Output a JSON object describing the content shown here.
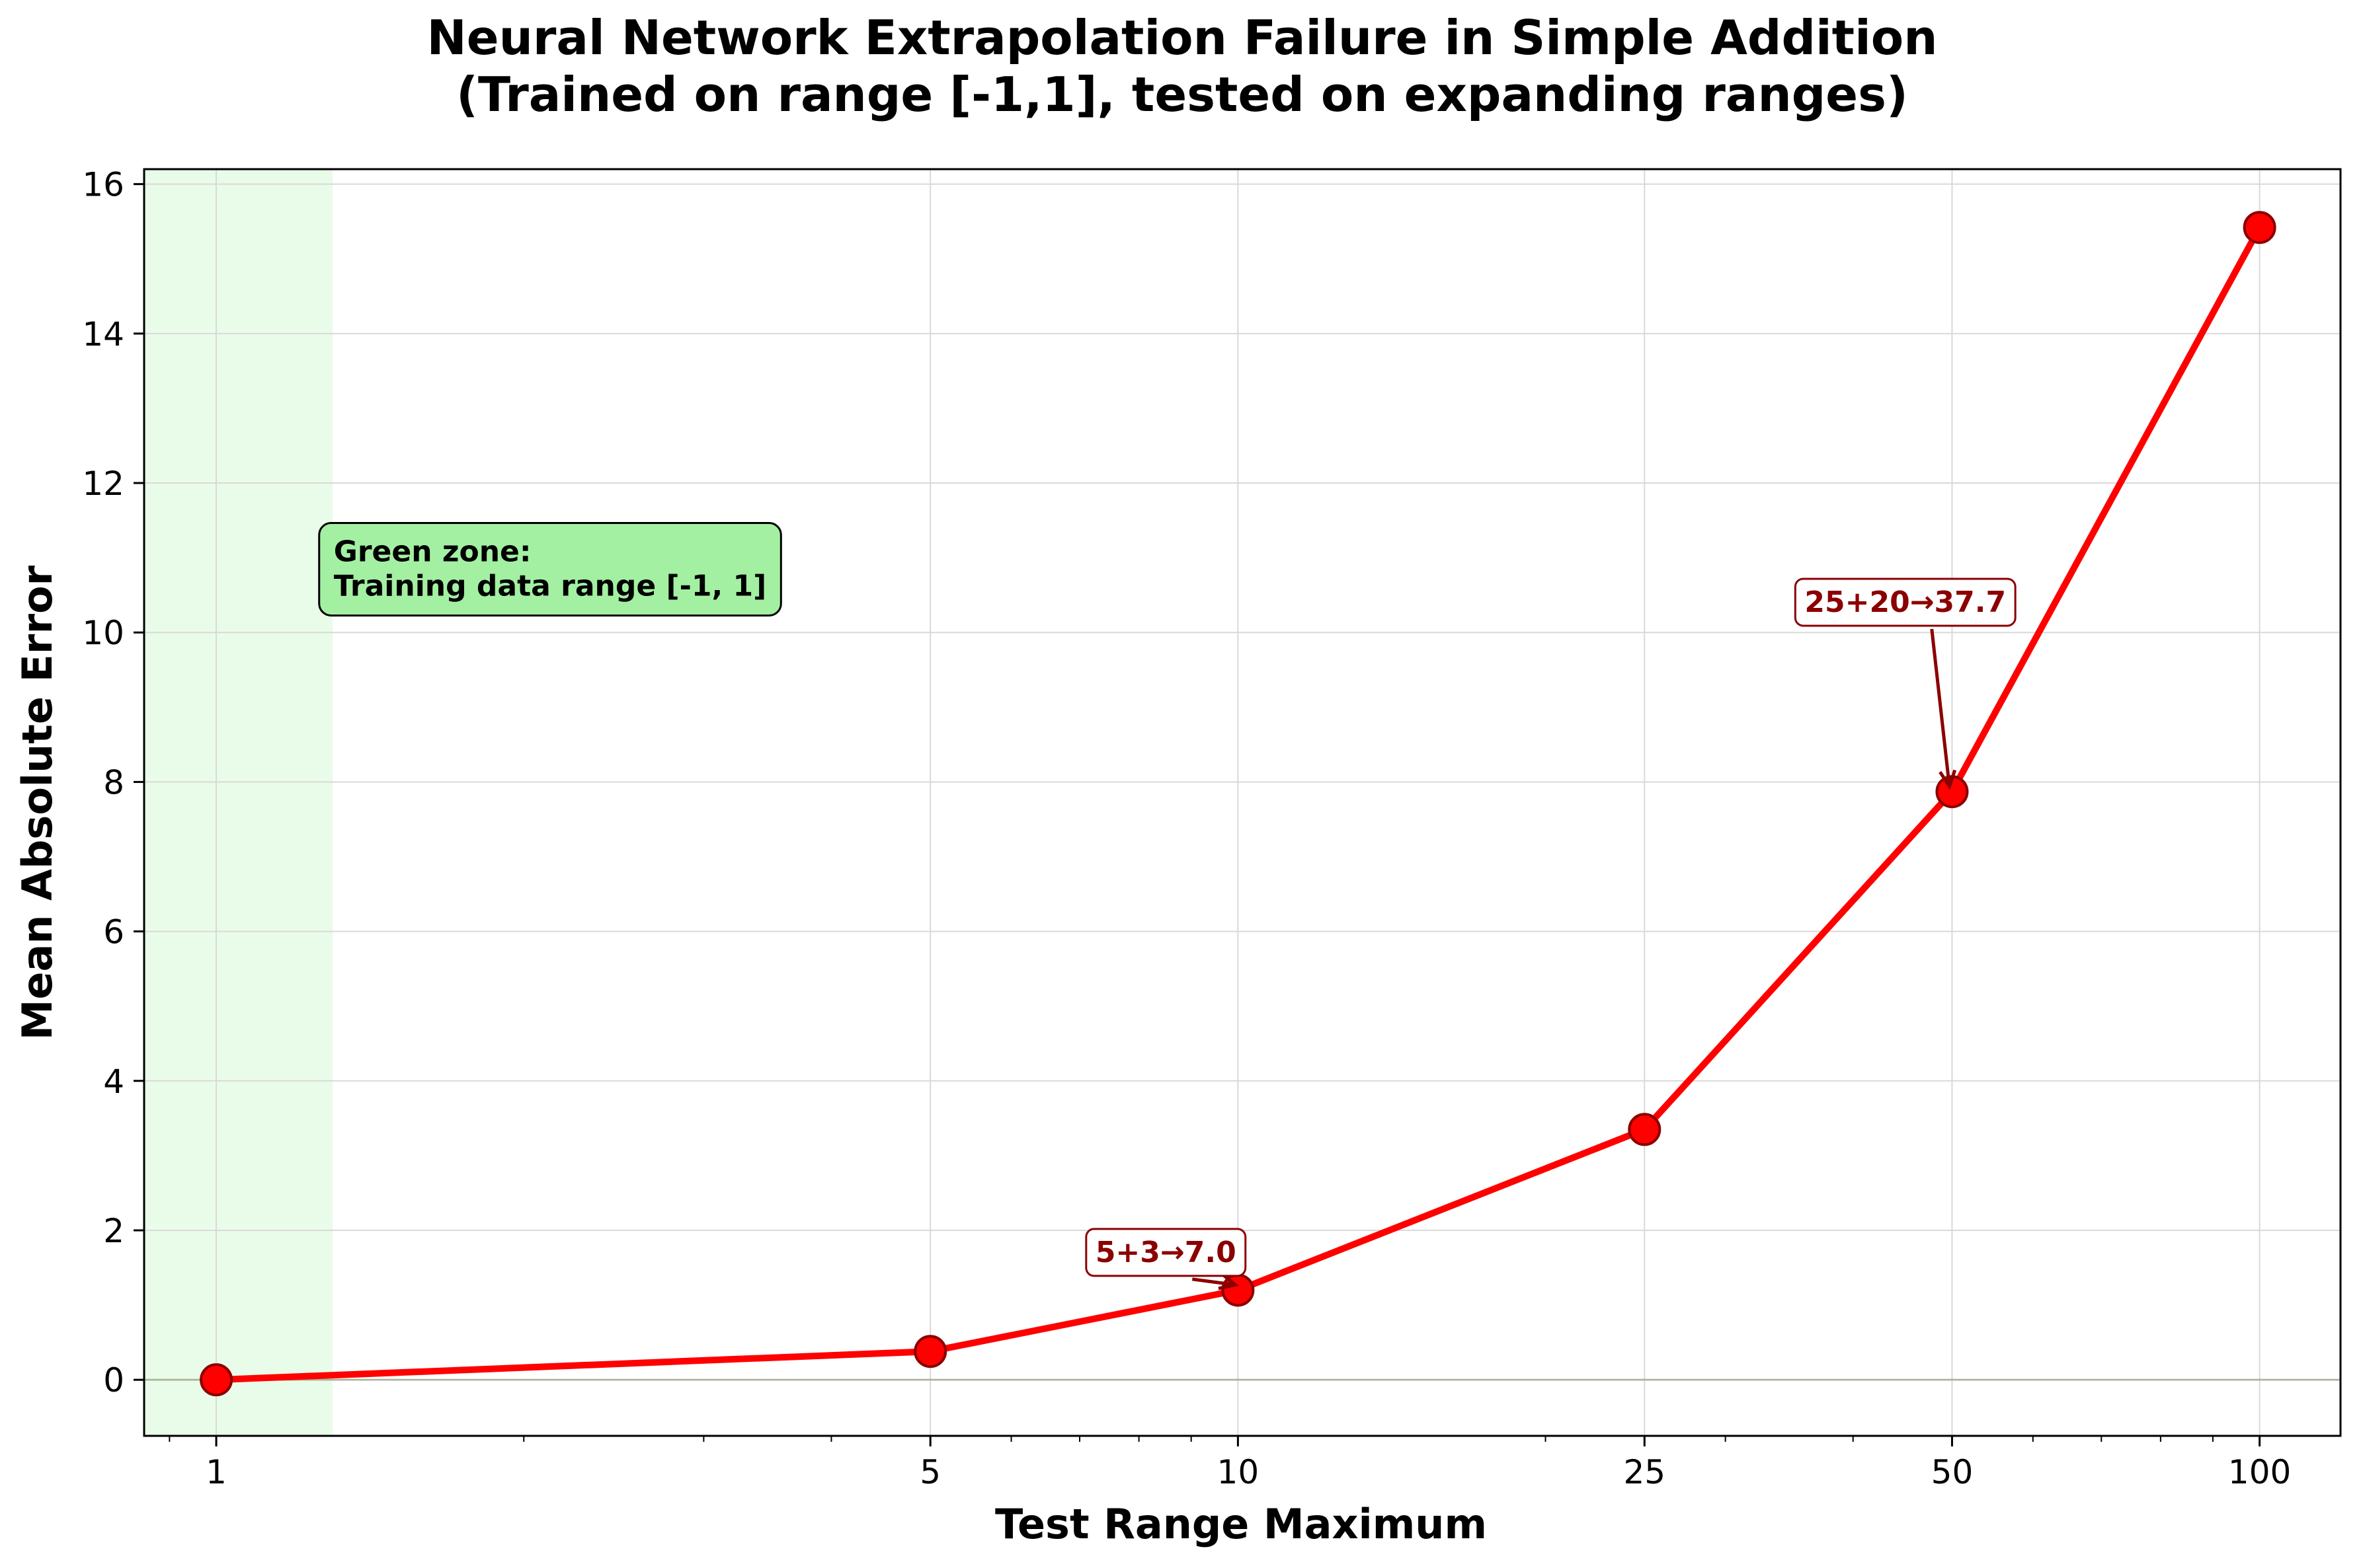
{
  "chart_data": {
    "type": "line",
    "title": "Neural Network Extrapolation Failure in Simple Addition",
    "subtitle": "(Trained on range [-1,1], tested on expanding ranges)",
    "xlabel": "Test Range Maximum",
    "ylabel": "Mean Absolute Error",
    "x_scale": "log",
    "xlim": [
      0.85,
      120
    ],
    "ylim": [
      -0.75,
      16.2
    ],
    "x_ticks": [
      1,
      5,
      10,
      25,
      50,
      100
    ],
    "x_tick_labels": [
      "1",
      "5",
      "10",
      "25",
      "50",
      "100"
    ],
    "y_ticks": [
      0,
      2,
      4,
      6,
      8,
      10,
      12,
      14,
      16
    ],
    "y_tick_labels": [
      "0",
      "2",
      "4",
      "6",
      "8",
      "10",
      "12",
      "14",
      "16"
    ],
    "grid": true,
    "series": [
      {
        "x": [
          1,
          5,
          10,
          25,
          50,
          100
        ],
        "values": [
          0.0,
          0.38,
          1.2,
          3.35,
          7.87,
          15.42
        ],
        "color": "#ff0000",
        "marker": "circle"
      }
    ],
    "shaded_region": {
      "x_from": 0.85,
      "x_to": 1.3,
      "color": "#90ee90"
    },
    "reference_line": {
      "y": 0,
      "color": "#556b2f"
    },
    "annotations": [
      {
        "text": "Green zone:\nTraining data range [-1, 1]",
        "anchor_x": 1.28,
        "anchor_y": 11.2,
        "style": "box-green"
      },
      {
        "text": "5+3→7.0",
        "point_x": 10,
        "point_y": 1.2,
        "label_x": 8.5,
        "label_y": 1.7,
        "style": "box-red"
      },
      {
        "text": "25+20→37.7",
        "point_x": 50,
        "point_y": 7.87,
        "label_x": 45,
        "label_y": 10.4,
        "style": "box-red"
      }
    ],
    "colors": {
      "line": "#ff0000",
      "marker_edge": "#8b0000",
      "annotation_text": "#8b0000",
      "green_box": "#a3f0a3"
    }
  }
}
